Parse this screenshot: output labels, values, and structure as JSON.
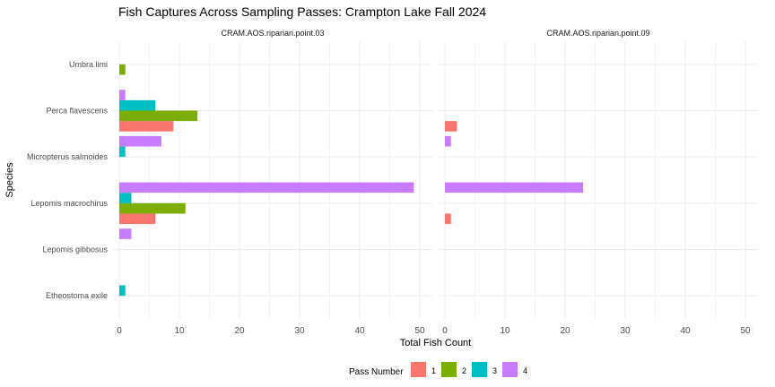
{
  "chart_data": {
    "type": "bar",
    "orientation": "horizontal",
    "title": "Fish Captures Across Sampling Passes: Crampton Lake Fall 2024",
    "xlabel": "Total Fish Count",
    "ylabel": "Species",
    "xlim": [
      0,
      50
    ],
    "x_ticks": [
      0,
      10,
      20,
      30,
      40,
      50
    ],
    "grid": true,
    "categories": [
      "Umbra limi",
      "Perca flavescens",
      "Micropterus salmoides",
      "Lepomis macrochirus",
      "Lepomis gibbosus",
      "Etheostoma exile"
    ],
    "legend": {
      "title": "Pass Number",
      "position": "bottom",
      "entries": [
        {
          "label": "1",
          "color": "#F8766D"
        },
        {
          "label": "2",
          "color": "#7CAE00"
        },
        {
          "label": "3",
          "color": "#00BFC4"
        },
        {
          "label": "4",
          "color": "#C77CFF"
        }
      ]
    },
    "panels": [
      {
        "strip": "CRAM.AOS.riparian.point.03",
        "series": [
          {
            "name": "1",
            "color": "#F8766D",
            "values": [
              null,
              9,
              null,
              6,
              null,
              null
            ]
          },
          {
            "name": "2",
            "color": "#7CAE00",
            "values": [
              1,
              13,
              null,
              11,
              null,
              null
            ]
          },
          {
            "name": "3",
            "color": "#00BFC4",
            "values": [
              null,
              6,
              1,
              2,
              null,
              1
            ]
          },
          {
            "name": "4",
            "color": "#C77CFF",
            "values": [
              null,
              1,
              7,
              49,
              2,
              null
            ]
          }
        ]
      },
      {
        "strip": "CRAM.AOS.riparian.point.09",
        "series": [
          {
            "name": "1",
            "color": "#F8766D",
            "values": [
              null,
              2,
              null,
              1,
              null,
              null
            ]
          },
          {
            "name": "2",
            "color": "#7CAE00",
            "values": [
              null,
              null,
              null,
              null,
              null,
              null
            ]
          },
          {
            "name": "3",
            "color": "#00BFC4",
            "values": [
              null,
              null,
              null,
              null,
              null,
              null
            ]
          },
          {
            "name": "4",
            "color": "#C77CFF",
            "values": [
              null,
              null,
              1,
              23,
              null,
              null
            ]
          }
        ]
      }
    ]
  }
}
